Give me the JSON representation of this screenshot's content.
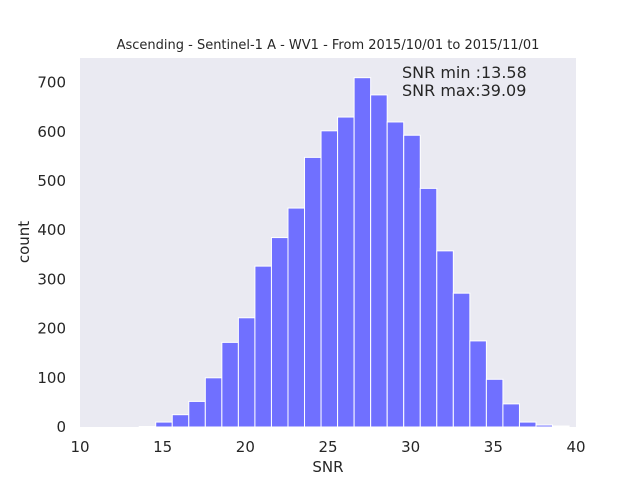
{
  "chart_data": {
    "type": "bar",
    "title": "Ascending - Sentinel-1 A - WV1 - From 2015/10/01 to 2015/11/01",
    "xlabel": "SNR",
    "ylabel": "count",
    "xlim": [
      10,
      40
    ],
    "ylim": [
      0,
      750
    ],
    "xticks": [
      "10",
      "15",
      "20",
      "25",
      "30",
      "35",
      "40"
    ],
    "yticks": [
      "0",
      "100",
      "200",
      "300",
      "400",
      "500",
      "600",
      "700"
    ],
    "grid": false,
    "bar_color": "#7070ff",
    "background_color": "#eaeaf2",
    "bin_width": 1.0,
    "bin_starts": [
      13.58,
      14.58,
      15.58,
      16.58,
      17.58,
      18.58,
      19.58,
      20.58,
      21.58,
      22.58,
      23.58,
      24.58,
      25.58,
      26.58,
      27.58,
      28.58,
      29.58,
      30.58,
      31.58,
      32.58,
      33.58,
      34.58,
      35.58,
      36.58,
      37.58,
      38.58
    ],
    "values": [
      1,
      10,
      25,
      52,
      100,
      172,
      222,
      327,
      385,
      445,
      548,
      602,
      630,
      710,
      675,
      620,
      593,
      485,
      358,
      272,
      175,
      97,
      47,
      10,
      4,
      2
    ],
    "annotations": [
      {
        "text": "SNR min :13.58"
      },
      {
        "text": "SNR max:39.09"
      }
    ]
  }
}
